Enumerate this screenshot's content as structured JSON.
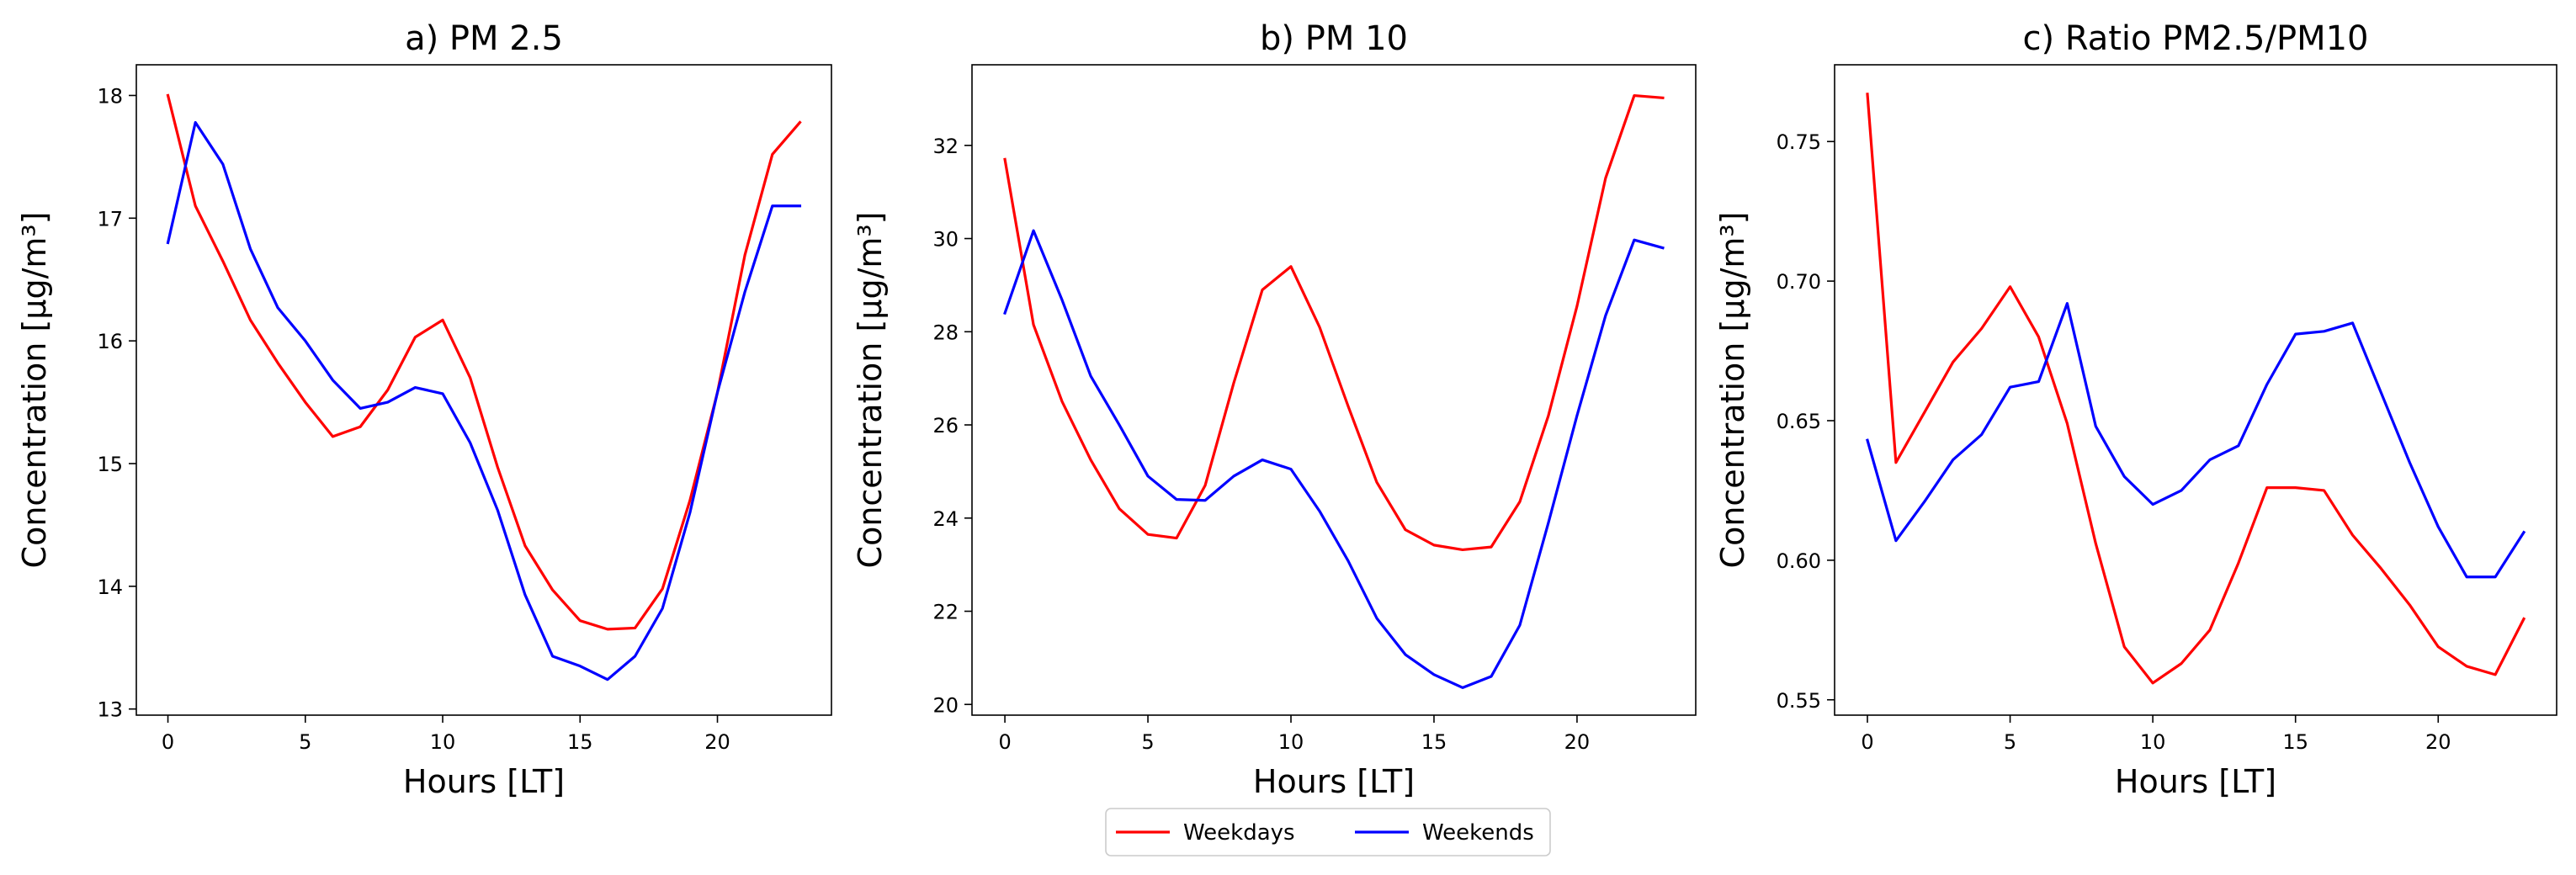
{
  "figure_legend": {
    "entries": [
      {
        "label": "Weekdays",
        "color": "#ff0000"
      },
      {
        "label": "Weekends",
        "color": "#0000ff"
      }
    ],
    "placement": "bottom-center"
  },
  "chart_data": [
    {
      "type": "line",
      "title": "a) PM 2.5",
      "xlabel": "Hours [LT]",
      "ylabel": "Concentration [µg/m³]",
      "x": [
        0,
        1,
        2,
        3,
        4,
        5,
        6,
        7,
        8,
        9,
        10,
        11,
        12,
        13,
        14,
        15,
        16,
        17,
        18,
        19,
        20,
        21,
        22,
        23
      ],
      "xlim": [
        -1.15,
        24.15
      ],
      "ylim": [
        12.95,
        18.25
      ],
      "xticks": [
        0,
        5,
        10,
        15,
        20
      ],
      "yticks": [
        13,
        14,
        15,
        16,
        17,
        18
      ],
      "xtick_labels": [
        "0",
        "5",
        "10",
        "15",
        "20"
      ],
      "ytick_labels": [
        "13",
        "14",
        "15",
        "16",
        "17",
        "18"
      ],
      "series": [
        {
          "name": "Weekdays",
          "color": "#ff0000",
          "values": [
            18.0,
            17.1,
            16.65,
            16.17,
            15.82,
            15.5,
            15.22,
            15.3,
            15.6,
            16.03,
            16.17,
            15.7,
            14.97,
            14.33,
            13.97,
            13.72,
            13.65,
            13.66,
            13.98,
            14.7,
            15.58,
            16.7,
            17.52,
            17.78
          ]
        },
        {
          "name": "Weekends",
          "color": "#0000ff",
          "values": [
            16.8,
            17.78,
            17.44,
            16.75,
            16.27,
            16.0,
            15.68,
            15.45,
            15.5,
            15.62,
            15.57,
            15.17,
            14.62,
            13.93,
            13.43,
            13.35,
            13.24,
            13.43,
            13.82,
            14.6,
            15.58,
            16.4,
            17.1,
            17.1
          ]
        }
      ]
    },
    {
      "type": "line",
      "title": "b) PM 10",
      "xlabel": "Hours [LT]",
      "ylabel": "Concentration [µg/m³]",
      "x": [
        0,
        1,
        2,
        3,
        4,
        5,
        6,
        7,
        8,
        9,
        10,
        11,
        12,
        13,
        14,
        15,
        16,
        17,
        18,
        19,
        20,
        21,
        22,
        23
      ],
      "xlim": [
        -1.15,
        24.15
      ],
      "ylim": [
        19.77,
        33.73
      ],
      "xticks": [
        0,
        5,
        10,
        15,
        20
      ],
      "yticks": [
        20,
        22,
        24,
        26,
        28,
        30,
        32
      ],
      "xtick_labels": [
        "0",
        "5",
        "10",
        "15",
        "20"
      ],
      "ytick_labels": [
        "20",
        "22",
        "24",
        "26",
        "28",
        "30",
        "32"
      ],
      "series": [
        {
          "name": "Weekdays",
          "color": "#ff0000",
          "values": [
            31.7,
            28.15,
            26.5,
            25.25,
            24.2,
            23.65,
            23.57,
            24.7,
            26.9,
            28.9,
            29.4,
            28.1,
            26.4,
            24.77,
            23.75,
            23.42,
            23.32,
            23.38,
            24.35,
            26.2,
            28.55,
            31.3,
            33.07,
            33.02
          ]
        },
        {
          "name": "Weekends",
          "color": "#0000ff",
          "values": [
            28.4,
            30.17,
            28.68,
            27.05,
            26.0,
            24.9,
            24.4,
            24.38,
            24.9,
            25.25,
            25.05,
            24.15,
            23.08,
            21.85,
            21.07,
            20.64,
            20.36,
            20.6,
            21.7,
            23.9,
            26.2,
            28.35,
            29.97,
            29.8
          ]
        }
      ]
    },
    {
      "type": "line",
      "title": "c) Ratio PM2.5/PM10",
      "xlabel": "Hours [LT]",
      "ylabel": "Concentration [µg/m³]",
      "x": [
        0,
        1,
        2,
        3,
        4,
        5,
        6,
        7,
        8,
        9,
        10,
        11,
        12,
        13,
        14,
        15,
        16,
        17,
        18,
        19,
        20,
        21,
        22,
        23
      ],
      "xlim": [
        -1.15,
        24.15
      ],
      "ylim": [
        0.5445,
        0.7775
      ],
      "xticks": [
        0,
        5,
        10,
        15,
        20
      ],
      "yticks": [
        0.55,
        0.6,
        0.65,
        0.7,
        0.75
      ],
      "xtick_labels": [
        "0",
        "5",
        "10",
        "15",
        "20"
      ],
      "ytick_labels": [
        "0.55",
        "0.60",
        "0.65",
        "0.70",
        "0.75"
      ],
      "series": [
        {
          "name": "Weekdays",
          "color": "#ff0000",
          "values": [
            0.767,
            0.635,
            0.653,
            0.671,
            0.683,
            0.698,
            0.68,
            0.649,
            0.606,
            0.569,
            0.556,
            0.563,
            0.575,
            0.599,
            0.626,
            0.626,
            0.625,
            0.609,
            0.597,
            0.584,
            0.569,
            0.562,
            0.559,
            0.579
          ]
        },
        {
          "name": "Weekends",
          "color": "#0000ff",
          "values": [
            0.643,
            0.607,
            0.621,
            0.636,
            0.645,
            0.662,
            0.664,
            0.692,
            0.648,
            0.63,
            0.62,
            0.625,
            0.636,
            0.641,
            0.663,
            0.681,
            0.682,
            0.685,
            0.66,
            0.635,
            0.612,
            0.594,
            0.594,
            0.61
          ]
        }
      ]
    }
  ]
}
